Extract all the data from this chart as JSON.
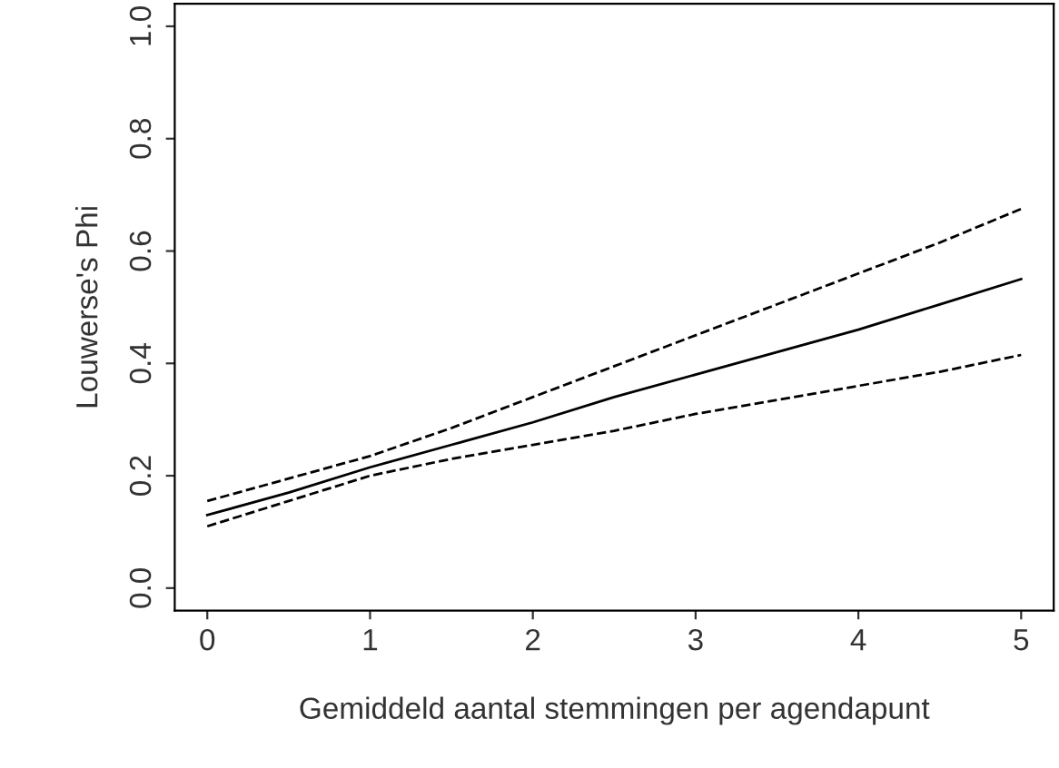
{
  "chart_data": {
    "type": "line",
    "xlabel": "Gemiddeld aantal stemmingen per agendapunt",
    "ylabel": "Louwerse's Phi",
    "x": [
      0,
      0.5,
      1,
      1.5,
      2,
      2.5,
      3,
      3.5,
      4,
      4.5,
      5
    ],
    "series": [
      {
        "color": "#000000",
        "line_style": "solid",
        "values": [
          0.13,
          0.17,
          0.215,
          0.255,
          0.295,
          0.34,
          0.38,
          0.42,
          0.46,
          0.505,
          0.55
        ]
      },
      {
        "color": "#000000",
        "line_style": "dashed",
        "values": [
          0.155,
          0.195,
          0.235,
          0.285,
          0.34,
          0.395,
          0.45,
          0.505,
          0.56,
          0.615,
          0.675
        ]
      },
      {
        "color": "#000000",
        "line_style": "dashed",
        "values": [
          0.11,
          0.155,
          0.2,
          0.23,
          0.255,
          0.28,
          0.31,
          0.335,
          0.36,
          0.385,
          0.415
        ]
      }
    ],
    "xlim": [
      -0.2,
      5.2
    ],
    "ylim": [
      -0.04,
      1.04
    ],
    "xticks": [
      0,
      1,
      2,
      3,
      4,
      5
    ],
    "yticks": [
      {
        "value": 0,
        "label": "0.0"
      },
      {
        "value": 0.2,
        "label": "0.2"
      },
      {
        "value": 0.4,
        "label": "0.4"
      },
      {
        "value": 0.6,
        "label": "0.6"
      },
      {
        "value": 0.8,
        "label": "0.8"
      },
      {
        "value": 1,
        "label": "1.0"
      }
    ],
    "grid": false,
    "legend": false,
    "marker": "none"
  }
}
